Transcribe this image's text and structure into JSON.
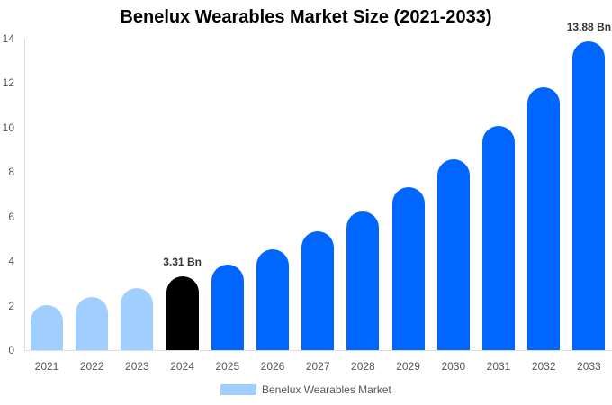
{
  "chart_data": {
    "type": "bar",
    "title": "Benelux Wearables Market Size (2021-2033)",
    "xlabel": "",
    "ylabel": "",
    "ylim": [
      0,
      14
    ],
    "yticks": [
      0,
      2,
      4,
      6,
      8,
      10,
      12,
      14
    ],
    "grid": false,
    "legend_position": "bottom",
    "categories": [
      "2021",
      "2022",
      "2023",
      "2024",
      "2025",
      "2026",
      "2027",
      "2028",
      "2029",
      "2030",
      "2031",
      "2032",
      "2033"
    ],
    "series": [
      {
        "name": "Benelux Wearables Market",
        "values": [
          2.02,
          2.39,
          2.79,
          3.31,
          3.85,
          4.53,
          5.34,
          6.23,
          7.33,
          8.58,
          10.08,
          11.82,
          13.88
        ]
      }
    ],
    "bar_colors": [
      "#a0cfff",
      "#a0cfff",
      "#a0cfff",
      "#000000",
      "#0066ff",
      "#0066ff",
      "#0066ff",
      "#0066ff",
      "#0066ff",
      "#0066ff",
      "#0066ff",
      "#0066ff",
      "#0066ff"
    ],
    "annotations": [
      {
        "category": "2024",
        "text": "3.31 Bn"
      },
      {
        "category": "2033",
        "text": "13.88 Bn"
      }
    ]
  },
  "legend": {
    "label": "Benelux Wearables Market",
    "color": "#a0cfff"
  }
}
